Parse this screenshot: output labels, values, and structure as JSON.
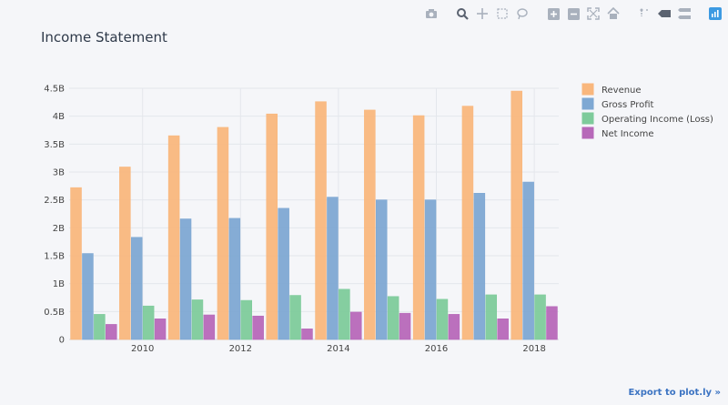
{
  "title": "Income Statement",
  "export_label": "Export to plot.ly »",
  "toolbar": {
    "icons": [
      "camera-icon",
      "zoom-icon",
      "pan-icon",
      "box-select-icon",
      "lasso-icon",
      "zoom-in-icon",
      "zoom-out-icon",
      "autoscale-icon",
      "reset-axes-icon",
      "spike-lines-icon",
      "hover-closest-icon",
      "hover-compare-icon",
      "plotly-logo-icon"
    ]
  },
  "chart_data": {
    "type": "bar",
    "title": "Income Statement",
    "xlabel": "",
    "ylabel": "",
    "categories": [
      "2009",
      "2010",
      "2011",
      "2012",
      "2013",
      "2014",
      "2015",
      "2016",
      "2017",
      "2018"
    ],
    "x_tick_labels": [
      "2010",
      "2012",
      "2014",
      "2016",
      "2018"
    ],
    "y_tick_labels": [
      "0",
      "0.5B",
      "1B",
      "1.5B",
      "2B",
      "2.5B",
      "3B",
      "3.5B",
      "4B",
      "4.5B"
    ],
    "y_ticks": [
      0,
      0.5,
      1,
      1.5,
      2,
      2.5,
      3,
      3.5,
      4,
      4.5
    ],
    "ylim": [
      0,
      4.5
    ],
    "grid": true,
    "legend_position": "top-right",
    "series": [
      {
        "name": "Revenue",
        "color": "#f9b77d",
        "values": [
          2.72,
          3.09,
          3.65,
          3.8,
          4.04,
          4.26,
          4.11,
          4.01,
          4.18,
          4.45
        ]
      },
      {
        "name": "Gross Profit",
        "color": "#7ea8d3",
        "values": [
          1.54,
          1.83,
          2.16,
          2.17,
          2.35,
          2.55,
          2.5,
          2.5,
          2.62,
          2.82
        ]
      },
      {
        "name": "Operating Income (Loss)",
        "color": "#7ecb9b",
        "values": [
          0.45,
          0.6,
          0.71,
          0.7,
          0.79,
          0.9,
          0.77,
          0.72,
          0.8,
          0.8
        ]
      },
      {
        "name": "Net Income",
        "color": "#b768b9",
        "values": [
          0.27,
          0.37,
          0.44,
          0.42,
          0.19,
          0.49,
          0.47,
          0.45,
          0.37,
          0.59
        ]
      }
    ]
  }
}
